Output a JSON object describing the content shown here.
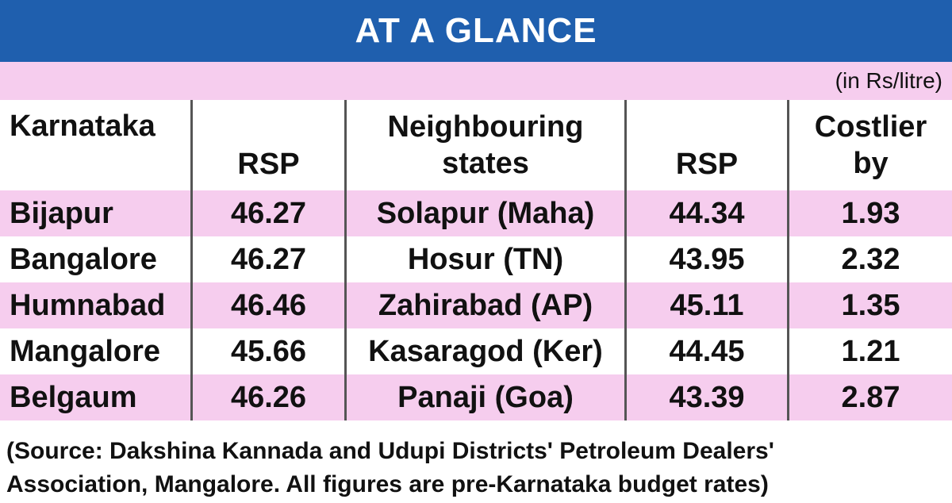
{
  "header": {
    "title": "AT A GLANCE",
    "unit": "(in Rs/litre)"
  },
  "table": {
    "columns": [
      "Karnataka",
      "RSP",
      "Neighbouring states",
      "RSP",
      "Costlier by"
    ],
    "rows": [
      [
        "Bijapur",
        46.27,
        "Solapur (Maha)",
        44.34,
        1.93
      ],
      [
        "Bangalore",
        46.27,
        "Hosur (TN)",
        43.95,
        2.32
      ],
      [
        "Humnabad",
        46.46,
        "Zahirabad (AP)",
        45.11,
        1.35
      ],
      [
        "Mangalore",
        45.66,
        "Kasaragod (Ker)",
        44.45,
        1.21
      ],
      [
        "Belgaum",
        46.26,
        "Panaji (Goa)",
        43.39,
        2.87
      ]
    ]
  },
  "footer": {
    "source": "(Source: Dakshina Kannada and Udupi Districts' Petroleum Dealers' Association, Mangalore. All figures are pre-Karnataka budget rates)"
  }
}
